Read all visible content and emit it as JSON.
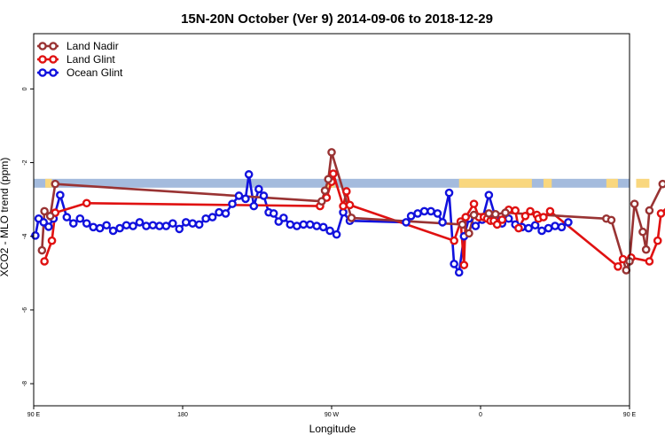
{
  "chart_data": {
    "type": "line",
    "title": "15N-20N October (Ver 9)   2014-09-06 to 2018-12-29",
    "xlabel": "Longitude",
    "ylabel": "XCO2 - MLO trend (ppm)",
    "xlim": [
      90,
      450
    ],
    "ylim": [
      -8.6,
      1.5
    ],
    "x_ticks": [
      {
        "value": 90,
        "label": "90 E"
      },
      {
        "value": 180,
        "label": "180"
      },
      {
        "value": 270,
        "label": "90 W"
      },
      {
        "value": 360,
        "label": "0"
      },
      {
        "value": 450,
        "label": "90 E"
      },
      {
        "value": 540,
        "label": "180"
      }
    ],
    "y_ticks": [
      {
        "value": 0,
        "label": "0"
      },
      {
        "value": -2,
        "label": "-2"
      },
      {
        "value": -4,
        "label": "-4"
      },
      {
        "value": -6,
        "label": "-6"
      },
      {
        "value": -8,
        "label": "-8"
      }
    ],
    "legend_position": "top-left",
    "land_strip": {
      "y_top": -2.44,
      "y_bottom": -2.68,
      "ocean_color": "#a4bbdd",
      "land_color": "#f9d77e",
      "land_ranges": [
        [
          97,
          101
        ],
        [
          267,
          272
        ],
        [
          347,
          391
        ],
        [
          398,
          403
        ],
        [
          436,
          443
        ],
        [
          454,
          462
        ],
        [
          474,
          476
        ]
      ]
    },
    "series": [
      {
        "name": "Land Nadir",
        "color": "#993333",
        "points": [
          [
            95,
            -4.38
          ],
          [
            96.5,
            -3.32
          ],
          [
            100,
            -3.45
          ],
          [
            103,
            -2.58
          ],
          [
            264,
            -3.05
          ],
          [
            266,
            -2.76
          ],
          [
            268,
            -2.45
          ],
          [
            270,
            -1.72
          ],
          [
            282,
            -3.5
          ],
          [
            349,
            -3.68
          ],
          [
            353,
            -3.92
          ],
          [
            356,
            -3.42
          ],
          [
            365,
            -3.38
          ],
          [
            369,
            -3.4
          ],
          [
            375,
            -3.36
          ],
          [
            436,
            -3.52
          ],
          [
            439,
            -3.56
          ],
          [
            448,
            -4.92
          ],
          [
            450,
            -4.68
          ],
          [
            453,
            -3.12
          ],
          [
            458,
            -3.88
          ],
          [
            460,
            -4.36
          ],
          [
            462,
            -3.3
          ],
          [
            470,
            -2.58
          ]
        ]
      },
      {
        "name": "Land Glint",
        "color": "#e01111",
        "points": [
          [
            96.5,
            -4.68
          ],
          [
            101,
            -4.12
          ],
          [
            103,
            -3.36
          ],
          [
            122,
            -3.1
          ],
          [
            263,
            -3.18
          ],
          [
            267,
            -2.95
          ],
          [
            270,
            -2.52
          ],
          [
            271,
            -2.3
          ],
          [
            277,
            -3.18
          ],
          [
            279,
            -2.78
          ],
          [
            281,
            -3.15
          ],
          [
            344,
            -4.12
          ],
          [
            348,
            -3.6
          ],
          [
            350,
            -4.78
          ],
          [
            351,
            -3.48
          ],
          [
            356,
            -3.12
          ],
          [
            359,
            -3.48
          ],
          [
            362,
            -3.48
          ],
          [
            364,
            -3.52
          ],
          [
            366,
            -3.58
          ],
          [
            368,
            -3.58
          ],
          [
            370,
            -3.68
          ],
          [
            373,
            -3.55
          ],
          [
            377,
            -3.28
          ],
          [
            381,
            -3.3
          ],
          [
            383,
            -3.78
          ],
          [
            387,
            -3.45
          ],
          [
            390,
            -3.32
          ],
          [
            394,
            -3.42
          ],
          [
            395,
            -3.52
          ],
          [
            398,
            -3.48
          ],
          [
            402,
            -3.32
          ],
          [
            443,
            -4.82
          ],
          [
            446,
            -4.62
          ],
          [
            451,
            -4.58
          ],
          [
            462,
            -4.68
          ],
          [
            467,
            -4.12
          ],
          [
            469,
            -3.38
          ],
          [
            475,
            -3.12
          ]
        ]
      },
      {
        "name": "Ocean Glint",
        "color": "#1111dd",
        "points": [
          [
            91,
            -3.98
          ],
          [
            93,
            -3.52
          ],
          [
            96,
            -3.62
          ],
          [
            99,
            -3.74
          ],
          [
            102,
            -3.52
          ],
          [
            106,
            -2.88
          ],
          [
            110,
            -3.48
          ],
          [
            114,
            -3.65
          ],
          [
            118,
            -3.52
          ],
          [
            122,
            -3.65
          ],
          [
            126,
            -3.75
          ],
          [
            130,
            -3.78
          ],
          [
            134,
            -3.7
          ],
          [
            138,
            -3.85
          ],
          [
            142,
            -3.78
          ],
          [
            146,
            -3.7
          ],
          [
            150,
            -3.72
          ],
          [
            154,
            -3.62
          ],
          [
            158,
            -3.72
          ],
          [
            162,
            -3.7
          ],
          [
            166,
            -3.72
          ],
          [
            170,
            -3.72
          ],
          [
            174,
            -3.65
          ],
          [
            178,
            -3.8
          ],
          [
            182,
            -3.62
          ],
          [
            186,
            -3.65
          ],
          [
            190,
            -3.68
          ],
          [
            194,
            -3.52
          ],
          [
            198,
            -3.48
          ],
          [
            202,
            -3.35
          ],
          [
            206,
            -3.38
          ],
          [
            210,
            -3.12
          ],
          [
            214,
            -2.9
          ],
          [
            218,
            -2.98
          ],
          [
            220,
            -2.32
          ],
          [
            223,
            -3.18
          ],
          [
            226,
            -2.72
          ],
          [
            229,
            -2.9
          ],
          [
            232,
            -3.35
          ],
          [
            235,
            -3.38
          ],
          [
            238,
            -3.6
          ],
          [
            241,
            -3.5
          ],
          [
            245,
            -3.68
          ],
          [
            249,
            -3.72
          ],
          [
            253,
            -3.68
          ],
          [
            257,
            -3.68
          ],
          [
            261,
            -3.72
          ],
          [
            265,
            -3.75
          ],
          [
            269,
            -3.85
          ],
          [
            273,
            -3.95
          ],
          [
            277,
            -3.35
          ],
          [
            281,
            -3.58
          ],
          [
            315,
            -3.62
          ],
          [
            318,
            -3.45
          ],
          [
            322,
            -3.38
          ],
          [
            326,
            -3.32
          ],
          [
            330,
            -3.32
          ],
          [
            334,
            -3.38
          ],
          [
            337,
            -3.62
          ],
          [
            341,
            -2.82
          ],
          [
            344,
            -4.75
          ],
          [
            347,
            -4.98
          ],
          [
            350,
            -4.0
          ],
          [
            353,
            -3.52
          ],
          [
            357,
            -3.72
          ],
          [
            361,
            -3.55
          ],
          [
            365,
            -2.88
          ],
          [
            369,
            -3.48
          ],
          [
            373,
            -3.65
          ],
          [
            377,
            -3.52
          ],
          [
            381,
            -3.68
          ],
          [
            385,
            -3.75
          ],
          [
            389,
            -3.78
          ],
          [
            393,
            -3.7
          ],
          [
            397,
            -3.85
          ],
          [
            401,
            -3.78
          ],
          [
            405,
            -3.72
          ],
          [
            409,
            -3.75
          ],
          [
            413,
            -3.62
          ]
        ]
      }
    ]
  }
}
